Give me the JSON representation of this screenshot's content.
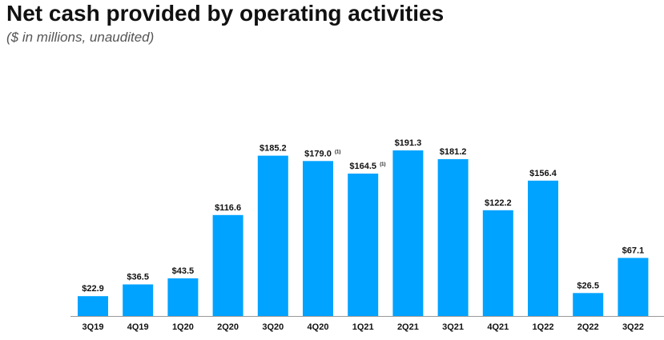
{
  "chart_data": {
    "type": "bar",
    "title": "Net cash provided by operating activities",
    "subtitle": "($ in millions, unaudited)",
    "xlabel": "",
    "ylabel": "",
    "ylim": [
      0,
      191.3
    ],
    "grid": false,
    "legend": "none",
    "bar_color": "#00A3FF",
    "axis_color": "#999999",
    "categories": [
      "3Q19",
      "4Q19",
      "1Q20",
      "2Q20",
      "3Q20",
      "4Q20",
      "1Q21",
      "2Q21",
      "3Q21",
      "4Q21",
      "1Q22",
      "2Q22",
      "3Q22"
    ],
    "values": [
      22.9,
      36.5,
      43.5,
      116.6,
      185.2,
      179.0,
      164.5,
      191.3,
      181.2,
      122.2,
      156.4,
      26.5,
      67.1
    ],
    "data_labels": [
      "$22.9",
      "$36.5",
      "$43.5",
      "$116.6",
      "$185.2",
      "$179.0",
      "$164.5",
      "$191.3",
      "$181.2",
      "$122.2",
      "$156.4",
      "$26.5",
      "$67.1"
    ],
    "footnotes": [
      "",
      "",
      "",
      "",
      "",
      "(1)",
      "(1)",
      "",
      "",
      "",
      "",
      "",
      ""
    ]
  }
}
